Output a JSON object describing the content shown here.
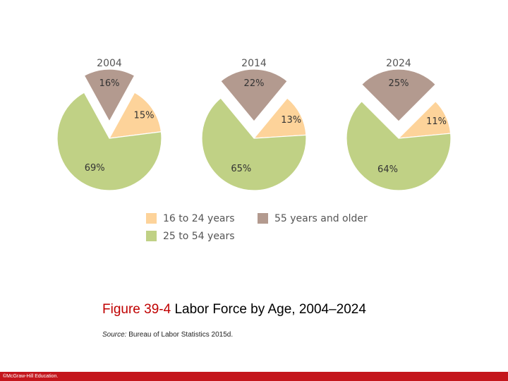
{
  "chart_data": [
    {
      "type": "pie",
      "title": "2004",
      "series": [
        {
          "name": "55 years and older",
          "value": 16,
          "label": "16%"
        },
        {
          "name": "16 to 24 years",
          "value": 15,
          "label": "15%"
        },
        {
          "name": "25 to 54 years",
          "value": 69,
          "label": "69%"
        }
      ],
      "exploded": "55 years and older"
    },
    {
      "type": "pie",
      "title": "2014",
      "series": [
        {
          "name": "55 years and older",
          "value": 22,
          "label": "22%"
        },
        {
          "name": "16 to 24 years",
          "value": 13,
          "label": "13%"
        },
        {
          "name": "25 to 54 years",
          "value": 65,
          "label": "65%"
        }
      ],
      "exploded": "55 years and older"
    },
    {
      "type": "pie",
      "title": "2024",
      "series": [
        {
          "name": "55 years and older",
          "value": 25,
          "label": "25%"
        },
        {
          "name": "16 to 24 years",
          "value": 11,
          "label": "11%"
        },
        {
          "name": "25 to 54 years",
          "value": 64,
          "label": "64%"
        }
      ],
      "exploded": "55 years and older"
    }
  ],
  "colors": {
    "16 to 24 years": "#fdd39a",
    "25 to 54 years": "#c0d185",
    "55 years and older": "#b39a8f"
  },
  "legend": [
    {
      "label": "16 to 24 years",
      "color": "#fdd39a"
    },
    {
      "label": "55 years and older",
      "color": "#b39a8f"
    },
    {
      "label": "25 to 54 years",
      "color": "#c0d185"
    }
  ],
  "caption": {
    "figure_number": "Figure 39-4",
    "title": "Labor Force by Age, 2004–2024"
  },
  "source": {
    "label": "Source:",
    "text": "Bureau of Labor Statistics 2015d."
  },
  "footer": {
    "copyright": "©McGraw-Hill Education."
  }
}
